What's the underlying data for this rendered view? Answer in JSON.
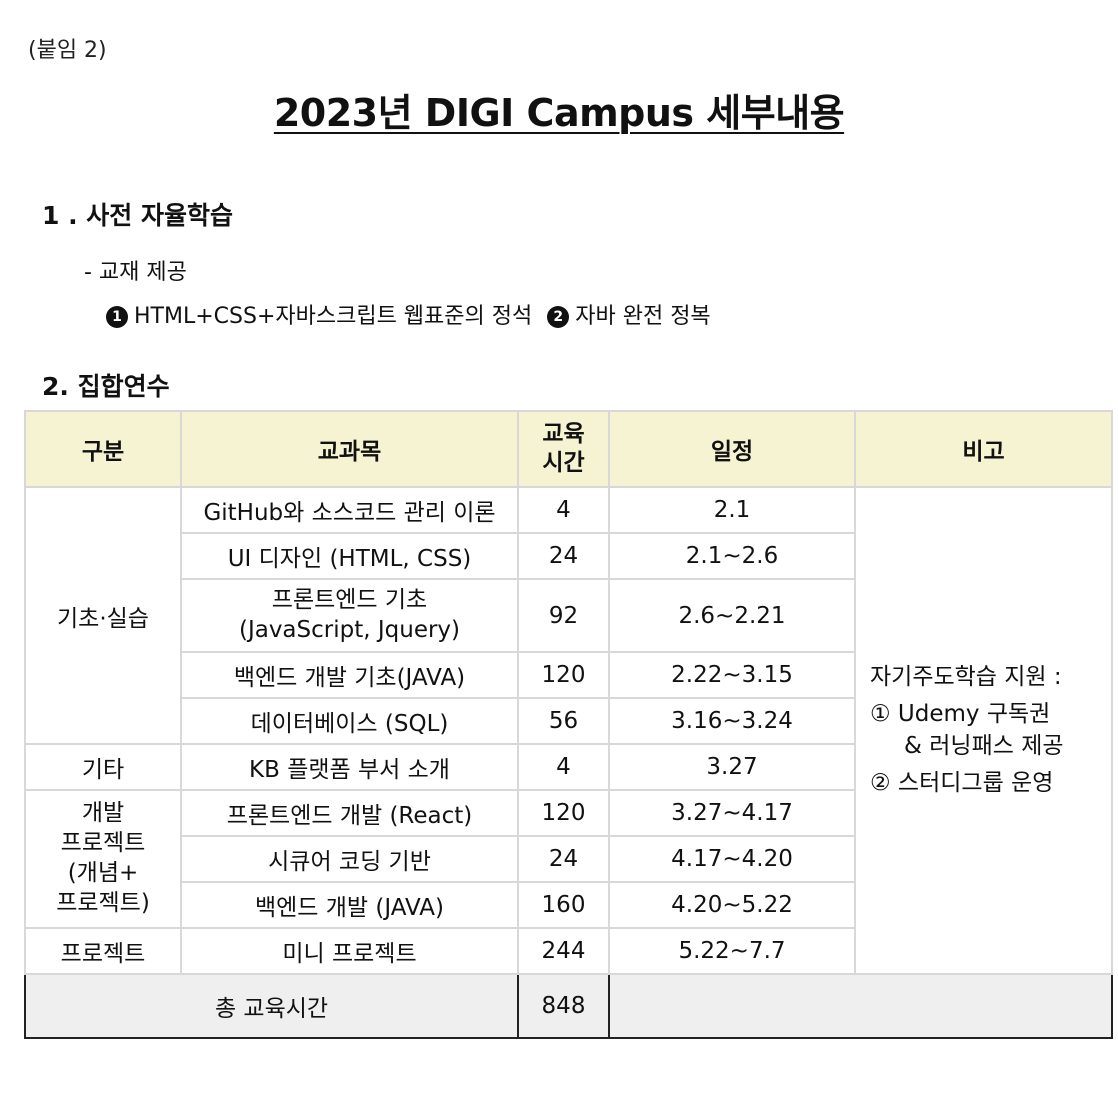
{
  "attachment_label": "(붙임 2)",
  "title": "2023년 DIGI Campus 세부내용",
  "section1": {
    "heading": "1 . 사전 자율학습",
    "item": "- 교재 제공",
    "book1_num": "1",
    "book1": "HTML+CSS+자바스크립트 웹표준의 정석",
    "book2_num": "2",
    "book2": "자바 완전 정복"
  },
  "section2": {
    "heading": "2. 집합연수"
  },
  "table": {
    "headers": [
      "구분",
      "교과목",
      "교육\n시간",
      "일정",
      "비고"
    ],
    "groups": {
      "basic": "기초·실습",
      "etc": "기타",
      "dev": "개발\n프로젝트\n(개념+\n프로젝트)",
      "project": "프로젝트"
    },
    "rows": [
      {
        "subject": "GitHub와 소스코드 관리 이론",
        "hours": "4",
        "schedule": "2.1"
      },
      {
        "subject": "UI 디자인 (HTML, CSS)",
        "hours": "24",
        "schedule": "2.1~2.6"
      },
      {
        "subject": "프론트엔드 기초\n(JavaScript, Jquery)",
        "hours": "92",
        "schedule": "2.6~2.21"
      },
      {
        "subject": "백엔드 개발 기초(JAVA)",
        "hours": "120",
        "schedule": "2.22~3.15"
      },
      {
        "subject": "데이터베이스 (SQL)",
        "hours": "56",
        "schedule": "3.16~3.24"
      },
      {
        "subject": "KB 플랫폼 부서 소개",
        "hours": "4",
        "schedule": "3.27"
      },
      {
        "subject": "프론트엔드 개발 (React)",
        "hours": "120",
        "schedule": "3.27~4.17"
      },
      {
        "subject": "시큐어 코딩 기반",
        "hours": "24",
        "schedule": "4.17~4.20"
      },
      {
        "subject": "백엔드 개발 (JAVA)",
        "hours": "160",
        "schedule": "4.20~5.22"
      },
      {
        "subject": "미니 프로젝트",
        "hours": "244",
        "schedule": "5.22~7.7"
      }
    ],
    "notes": {
      "line1": "자기주도학습 지원 :",
      "line2": "① Udemy 구독권",
      "line3": "& 러닝패스 제공",
      "line4": "② 스터디그룹 운영"
    },
    "total_label": "총 교육시간",
    "total_hours": "848"
  }
}
